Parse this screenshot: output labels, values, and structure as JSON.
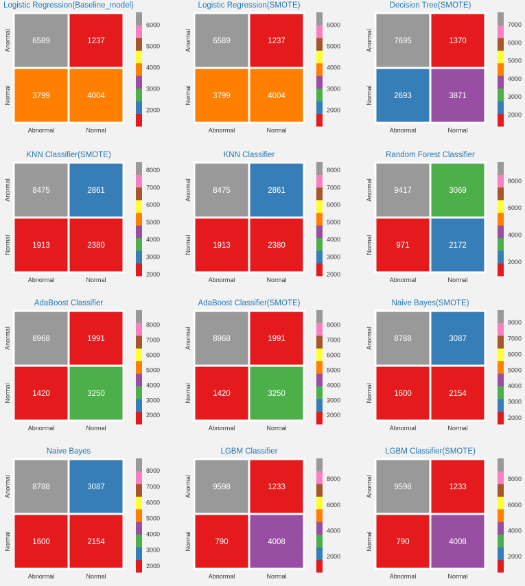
{
  "palette": [
    "#e41a1c",
    "#377eb8",
    "#4daf4a",
    "#984ea3",
    "#ff7f00",
    "#ffff33",
    "#a65628",
    "#f781bf",
    "#999999"
  ],
  "colors": {
    "background": "#f2f2f2",
    "title": "#1f77b4",
    "cell_text": "#ffffff",
    "tick_text": "#333333",
    "cell_border": "#ffffff"
  },
  "chart_data": [
    {
      "type": "heatmap",
      "title": "Logistic Regression(Baseline_model)",
      "xlabels": [
        "Abnormal",
        "Normal"
      ],
      "ylabels": [
        "Anormal",
        "Normal"
      ],
      "values": [
        [
          6589,
          1237
        ],
        [
          3799,
          4004
        ]
      ],
      "cbar_ticks": [
        2000,
        3000,
        4000,
        5000,
        6000
      ],
      "cbar_range": [
        1237,
        6589
      ]
    },
    {
      "type": "heatmap",
      "title": "Logistic Regression(SMOTE)",
      "xlabels": [
        "Abnormal",
        "Normal"
      ],
      "ylabels": [
        "Anormal",
        "Normal"
      ],
      "values": [
        [
          6589,
          1237
        ],
        [
          3799,
          4004
        ]
      ],
      "cbar_ticks": [
        2000,
        3000,
        4000,
        5000,
        6000
      ],
      "cbar_range": [
        1237,
        6589
      ]
    },
    {
      "type": "heatmap",
      "title": "Decision Tree(SMOTE)",
      "xlabels": [
        "Abnormal",
        "Normal"
      ],
      "ylabels": [
        "Anormal",
        "Normal"
      ],
      "values": [
        [
          7695,
          1370
        ],
        [
          2693,
          3871
        ]
      ],
      "cbar_ticks": [
        2000,
        3000,
        4000,
        5000,
        6000,
        7000
      ],
      "cbar_range": [
        1370,
        7695
      ]
    },
    {
      "type": "heatmap",
      "title": "KNN Classifier(SMOTE)",
      "xlabels": [
        "Abnormal",
        "Normal"
      ],
      "ylabels": [
        "Anormal",
        "Normal"
      ],
      "values": [
        [
          8475,
          2861
        ],
        [
          1913,
          2380
        ]
      ],
      "cbar_ticks": [
        2000,
        3000,
        4000,
        5000,
        6000,
        7000,
        8000
      ],
      "cbar_range": [
        1913,
        8475
      ]
    },
    {
      "type": "heatmap",
      "title": "KNN Classifier",
      "xlabels": [
        "Abnormal",
        "Normal"
      ],
      "ylabels": [
        "Anormal",
        "Normal"
      ],
      "values": [
        [
          8475,
          2861
        ],
        [
          1913,
          2380
        ]
      ],
      "cbar_ticks": [
        2000,
        3000,
        4000,
        5000,
        6000,
        7000,
        8000
      ],
      "cbar_range": [
        1913,
        8475
      ]
    },
    {
      "type": "heatmap",
      "title": "Random Forest Classifier",
      "xlabels": [
        "Abnormal",
        "Normal"
      ],
      "ylabels": [
        "Anormal",
        "Normal"
      ],
      "values": [
        [
          9417,
          3069
        ],
        [
          971,
          2172
        ]
      ],
      "cbar_ticks": [
        2000,
        4000,
        6000,
        8000
      ],
      "cbar_range": [
        971,
        9417
      ]
    },
    {
      "type": "heatmap",
      "title": "AdaBoost Classifier",
      "xlabels": [
        "Abnormal",
        "Normal"
      ],
      "ylabels": [
        "Anormal",
        "Normal"
      ],
      "values": [
        [
          8968,
          1991
        ],
        [
          1420,
          3250
        ]
      ],
      "cbar_ticks": [
        2000,
        3000,
        4000,
        5000,
        6000,
        7000,
        8000
      ],
      "cbar_range": [
        1420,
        8968
      ]
    },
    {
      "type": "heatmap",
      "title": "AdaBoost Classifier(SMOTE)",
      "xlabels": [
        "Abnormal",
        "Normal"
      ],
      "ylabels": [
        "Anormal",
        "Normal"
      ],
      "values": [
        [
          8968,
          1991
        ],
        [
          1420,
          3250
        ]
      ],
      "cbar_ticks": [
        2000,
        3000,
        4000,
        5000,
        6000,
        7000,
        8000
      ],
      "cbar_range": [
        1420,
        8968
      ]
    },
    {
      "type": "heatmap",
      "title": "Naive Bayes(SMOTE)",
      "xlabels": [
        "Abnormal",
        "Normal"
      ],
      "ylabels": [
        "Anormal",
        "Normal"
      ],
      "values": [
        [
          8788,
          3087
        ],
        [
          1600,
          2154
        ]
      ],
      "cbar_ticks": [
        2000,
        3000,
        4000,
        5000,
        6000,
        7000,
        8000
      ],
      "cbar_range": [
        1600,
        8788
      ]
    },
    {
      "type": "heatmap",
      "title": "Naive Bayes",
      "xlabels": [
        "Abnormal",
        "Normal"
      ],
      "ylabels": [
        "Anormal",
        "Normal"
      ],
      "values": [
        [
          8788,
          3087
        ],
        [
          1600,
          2154
        ]
      ],
      "cbar_ticks": [
        2000,
        3000,
        4000,
        5000,
        6000,
        7000,
        8000
      ],
      "cbar_range": [
        1600,
        8788
      ]
    },
    {
      "type": "heatmap",
      "title": "LGBM Classifier",
      "xlabels": [
        "Abnormal",
        "Normal"
      ],
      "ylabels": [
        "Anormal",
        "Normal"
      ],
      "values": [
        [
          9598,
          1233
        ],
        [
          790,
          4008
        ]
      ],
      "cbar_ticks": [
        2000,
        4000,
        6000,
        8000
      ],
      "cbar_range": [
        790,
        9598
      ]
    },
    {
      "type": "heatmap",
      "title": "LGBM Classifier(SMOTE)",
      "xlabels": [
        "Abnormal",
        "Normal"
      ],
      "ylabels": [
        "Anormal",
        "Normal"
      ],
      "values": [
        [
          9598,
          1233
        ],
        [
          790,
          4008
        ]
      ],
      "cbar_ticks": [
        2000,
        4000,
        6000,
        8000
      ],
      "cbar_range": [
        790,
        9598
      ]
    }
  ]
}
